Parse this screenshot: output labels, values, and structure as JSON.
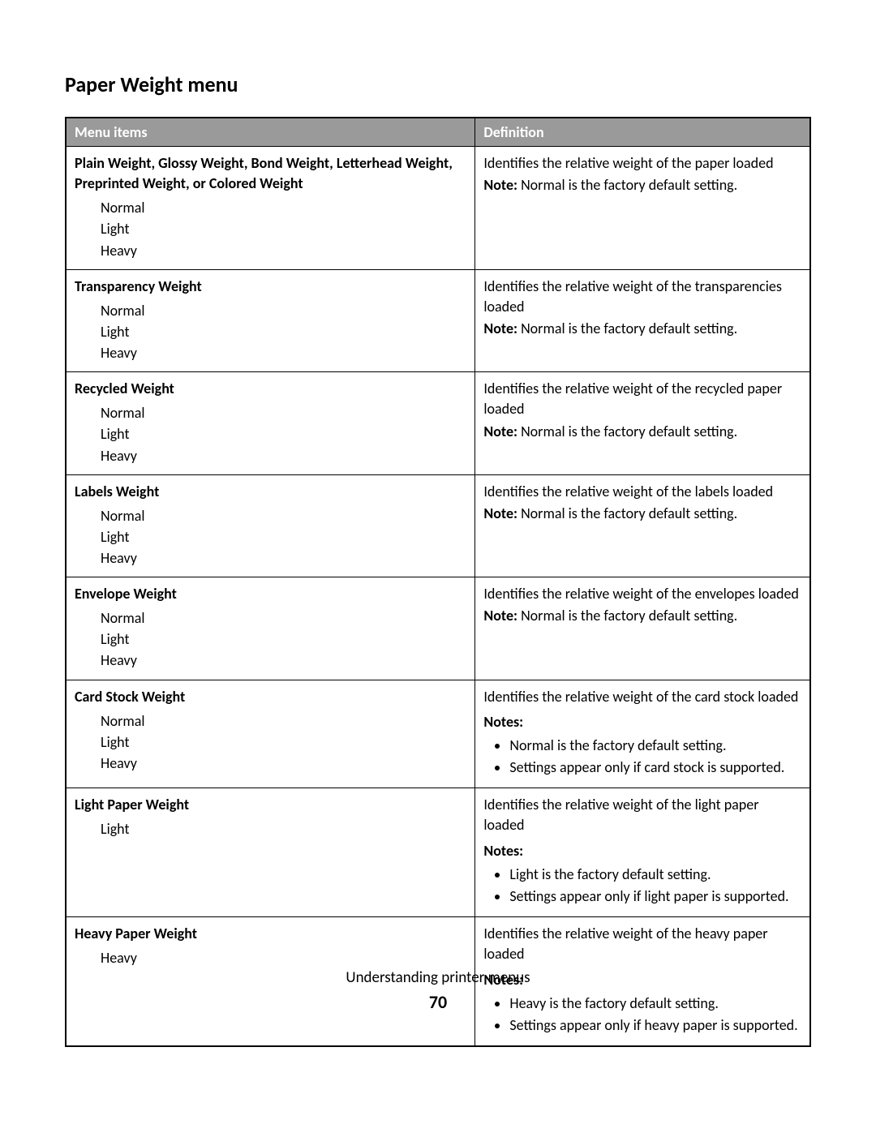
{
  "title": "Paper Weight menu",
  "headers": {
    "items": "Menu items",
    "definition": "Definition"
  },
  "labels": {
    "note_prefix": "Note:",
    "notes_prefix": "Notes:"
  },
  "rows": [
    {
      "item_title": "Plain Weight, Glossy Weight, Bond Weight, Letterhead Weight, Preprinted Weight, or Colored Weight",
      "options": [
        "Normal",
        "Light",
        "Heavy"
      ],
      "def_lines": [
        "Identifies the relative weight of the paper loaded"
      ],
      "single_note": "Normal is the factory default setting."
    },
    {
      "item_title": "Transparency Weight",
      "options": [
        "Normal",
        "Light",
        "Heavy"
      ],
      "def_lines": [
        "Identifies the relative weight of the transparencies loaded"
      ],
      "single_note": "Normal is the factory default setting."
    },
    {
      "item_title": "Recycled Weight",
      "options": [
        "Normal",
        "Light",
        "Heavy"
      ],
      "def_lines": [
        "Identifies the relative weight of the recycled paper loaded"
      ],
      "single_note": "Normal is the factory default setting."
    },
    {
      "item_title": "Labels Weight",
      "options": [
        "Normal",
        "Light",
        "Heavy"
      ],
      "def_lines": [
        "Identifies the relative weight of the labels loaded"
      ],
      "single_note": "Normal is the factory default setting."
    },
    {
      "item_title": "Envelope Weight",
      "options": [
        "Normal",
        "Light",
        "Heavy"
      ],
      "def_lines": [
        "Identifies the relative weight of the envelopes loaded"
      ],
      "single_note": "Normal is the factory default setting."
    },
    {
      "item_title": "Card Stock Weight",
      "options": [
        "Normal",
        "Light",
        "Heavy"
      ],
      "def_lines": [
        "Identifies the relative weight of the card stock loaded"
      ],
      "notes_list": [
        "Normal is the factory default setting.",
        "Settings appear only if card stock is supported."
      ]
    },
    {
      "item_title": "Light Paper Weight",
      "options": [
        "Light"
      ],
      "def_lines": [
        "Identifies the relative weight of the light paper loaded"
      ],
      "notes_list": [
        "Light is the factory default setting.",
        "Settings appear only if light paper is supported."
      ]
    },
    {
      "item_title": "Heavy Paper Weight",
      "options": [
        "Heavy"
      ],
      "def_lines": [
        "Identifies the relative weight of the heavy paper loaded"
      ],
      "notes_list": [
        "Heavy is the factory default setting.",
        "Settings appear only if heavy paper is supported."
      ]
    }
  ],
  "footer": "Understanding printer menus",
  "page_number": "70"
}
